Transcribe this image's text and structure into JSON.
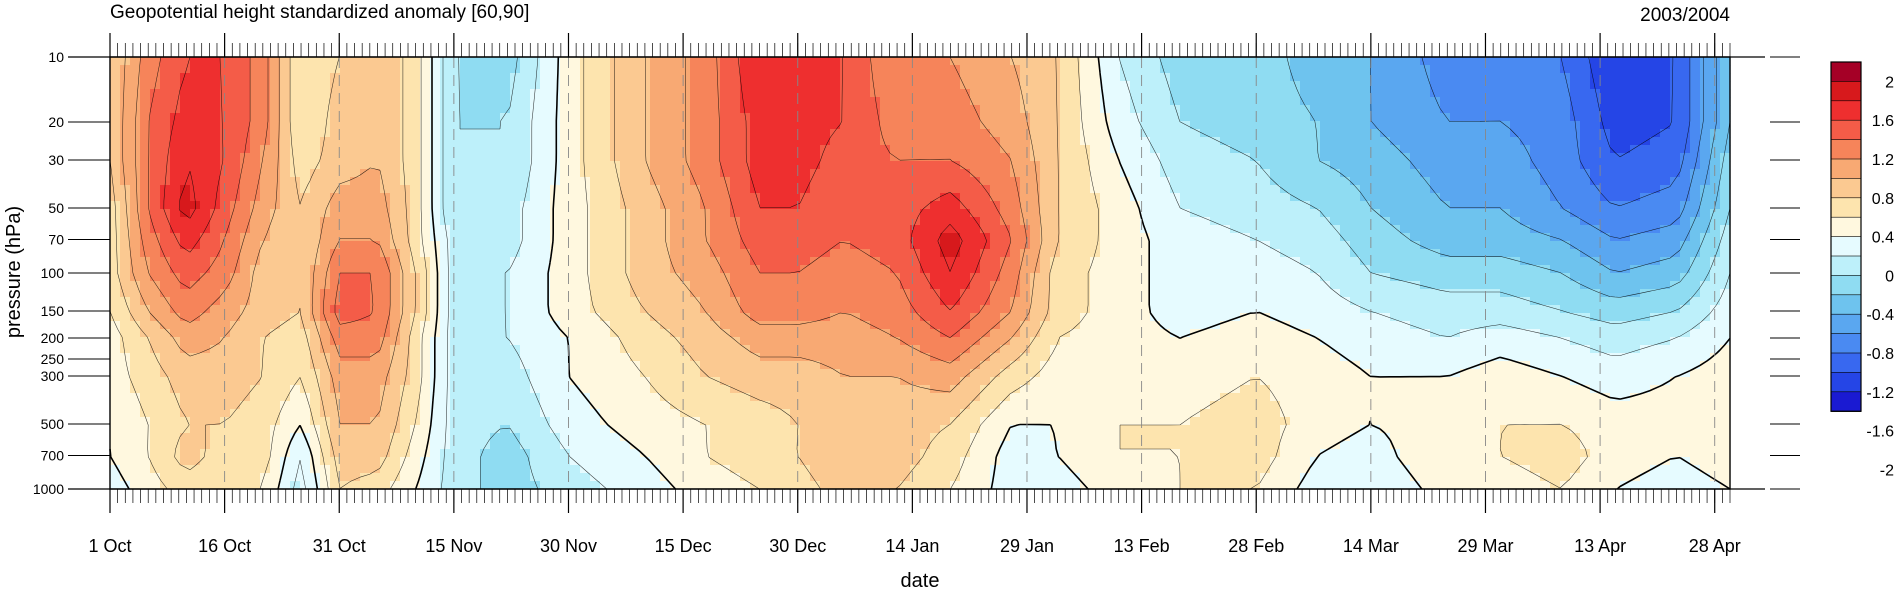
{
  "chart_data": {
    "type": "heatmap",
    "title": "Geopotential height standardized anomaly [60,90]",
    "subtitle": "2003/2004",
    "xlabel": "date",
    "ylabel": "pressure (hPa)",
    "x_tick_labels": [
      "1 Oct",
      "16 Oct",
      "31 Oct",
      "15 Nov",
      "30 Nov",
      "15 Dec",
      "30 Dec",
      "14 Jan",
      "29 Jan",
      "13 Feb",
      "28 Feb",
      "14 Mar",
      "29 Mar",
      "13 Apr",
      "28 Apr"
    ],
    "x_tick_days": [
      0,
      15,
      30,
      45,
      60,
      75,
      90,
      105,
      120,
      135,
      150,
      165,
      180,
      195,
      210
    ],
    "x_range_days": [
      0,
      212
    ],
    "y_ticks": [
      10,
      20,
      30,
      50,
      70,
      100,
      150,
      200,
      250,
      300,
      500,
      700,
      1000
    ],
    "y_range": [
      1000,
      10
    ],
    "y_scale": "log",
    "colorbar": {
      "labels": [
        "2",
        "1.6",
        "1.2",
        "0.8",
        "0.4",
        "0",
        "-0.4",
        "-0.8",
        "-1.2",
        "-1.6",
        "-2"
      ],
      "colors": [
        "#a50026",
        "#d7191c",
        "#ee2f2f",
        "#f45c48",
        "#f6845a",
        "#f8a973",
        "#fbc991",
        "#fde4ae",
        "#fff8df",
        "#e6fbff",
        "#bdf0fa",
        "#8fdcf2",
        "#6ec3ee",
        "#5aa7f0",
        "#4a8af2",
        "#3868f0",
        "#2545e6",
        "#1a1ad2"
      ]
    },
    "grid_times": [
      0,
      5,
      10,
      15,
      20,
      25,
      30,
      35,
      40,
      45,
      52,
      60,
      70,
      78,
      85,
      90,
      96,
      103,
      110,
      118,
      124,
      132,
      140,
      150,
      158,
      165,
      175,
      182,
      190,
      197,
      205,
      212
    ],
    "grid_levels": [
      10,
      20,
      30,
      50,
      70,
      100,
      150,
      200,
      300,
      500,
      700,
      1000
    ],
    "values": [
      [
        0.4,
        0.9,
        1.2,
        1.2,
        0.9,
        0.2,
        0.4,
        0.6,
        0.3,
        -0.4,
        -0.5,
        0.1,
        0.6,
        0.9,
        1.4,
        1.4,
        1.2,
        0.8,
        0.8,
        0.6,
        0.4,
        -0.2,
        -0.5,
        -0.5,
        -0.7,
        -0.8,
        -1.1,
        -1.0,
        -1.2,
        -1.6,
        -1.4,
        -0.6
      ],
      [
        0.4,
        1.0,
        1.3,
        1.2,
        0.9,
        0.2,
        0.5,
        0.6,
        0.3,
        -0.4,
        -0.4,
        0.1,
        0.6,
        0.9,
        1.3,
        1.3,
        1.2,
        0.9,
        0.9,
        0.7,
        0.4,
        -0.1,
        -0.4,
        -0.5,
        -0.6,
        -0.8,
        -1.0,
        -1.0,
        -1.1,
        -1.5,
        -1.4,
        -0.6
      ],
      [
        0.4,
        1.0,
        1.4,
        1.2,
        0.8,
        0.3,
        0.5,
        0.6,
        0.3,
        -0.4,
        -0.4,
        0.1,
        0.6,
        0.9,
        1.3,
        1.3,
        1.1,
        1.0,
        1.0,
        0.8,
        0.4,
        0.0,
        -0.3,
        -0.4,
        -0.6,
        -0.7,
        -0.9,
        -0.9,
        -1.1,
        -1.4,
        -1.3,
        -0.5
      ],
      [
        0.3,
        1.0,
        1.5,
        1.1,
        0.7,
        0.4,
        0.7,
        0.7,
        0.3,
        -0.4,
        -0.3,
        0.1,
        0.5,
        0.8,
        1.2,
        1.2,
        1.0,
        1.1,
        1.3,
        0.9,
        0.4,
        0.1,
        -0.2,
        -0.3,
        -0.4,
        -0.6,
        -0.8,
        -0.8,
        -1.0,
        -1.2,
        -1.1,
        -0.4
      ],
      [
        0.3,
        0.9,
        1.3,
        1.0,
        0.6,
        0.4,
        0.8,
        0.8,
        0.3,
        -0.3,
        -0.3,
        0.1,
        0.5,
        0.8,
        1.1,
        1.1,
        1.0,
        1.1,
        1.5,
        1.0,
        0.4,
        0.1,
        -0.1,
        -0.2,
        -0.3,
        -0.5,
        -0.7,
        -0.7,
        -0.8,
        -1.0,
        -0.9,
        -0.3
      ],
      [
        0.3,
        0.8,
        1.1,
        0.9,
        0.5,
        0.4,
        1.0,
        1.0,
        0.4,
        -0.3,
        -0.2,
        0.1,
        0.5,
        0.7,
        1.0,
        1.0,
        0.9,
        1.0,
        1.4,
        0.9,
        0.3,
        0.1,
        -0.1,
        -0.1,
        -0.2,
        -0.4,
        -0.5,
        -0.5,
        -0.6,
        -0.8,
        -0.7,
        -0.2
      ],
      [
        0.2,
        0.6,
        0.9,
        0.7,
        0.5,
        0.4,
        1.1,
        1.0,
        0.4,
        -0.3,
        -0.2,
        0.1,
        0.4,
        0.6,
        0.9,
        0.9,
        0.8,
        0.9,
        1.2,
        0.8,
        0.3,
        0.1,
        -0.1,
        0.0,
        -0.1,
        -0.2,
        -0.3,
        -0.3,
        -0.4,
        -0.5,
        -0.4,
        -0.1
      ],
      [
        0.1,
        0.4,
        0.7,
        0.6,
        0.4,
        0.3,
        0.9,
        0.9,
        0.3,
        -0.3,
        -0.2,
        0.0,
        0.3,
        0.5,
        0.7,
        0.7,
        0.7,
        0.8,
        1.0,
        0.6,
        0.2,
        0.1,
        0.0,
        0.1,
        0.0,
        -0.1,
        -0.2,
        -0.1,
        -0.2,
        -0.3,
        -0.2,
        0.0
      ],
      [
        0.1,
        0.3,
        0.5,
        0.5,
        0.4,
        0.2,
        0.7,
        0.7,
        0.3,
        -0.3,
        -0.3,
        0.0,
        0.2,
        0.4,
        0.5,
        0.5,
        0.6,
        0.6,
        0.7,
        0.3,
        0.1,
        0.2,
        0.1,
        0.2,
        0.1,
        0.0,
        0.0,
        0.1,
        0.0,
        -0.1,
        0.0,
        0.1
      ],
      [
        0.0,
        0.2,
        0.4,
        0.4,
        0.3,
        0.0,
        0.6,
        0.6,
        0.2,
        -0.3,
        -0.4,
        -0.1,
        0.1,
        0.2,
        0.3,
        0.4,
        0.5,
        0.5,
        0.4,
        0.0,
        0.0,
        0.2,
        0.2,
        0.3,
        0.1,
        0.0,
        0.1,
        0.2,
        0.2,
        0.1,
        0.1,
        0.1
      ],
      [
        0.0,
        0.2,
        0.5,
        0.3,
        0.3,
        -0.2,
        0.5,
        0.5,
        0.1,
        -0.3,
        -0.5,
        -0.2,
        0.0,
        0.2,
        0.3,
        0.4,
        0.6,
        0.5,
        0.3,
        -0.1,
        0.0,
        0.2,
        0.2,
        0.3,
        0.0,
        -0.1,
        0.2,
        0.2,
        0.3,
        0.1,
        0.0,
        0.1
      ],
      [
        -0.1,
        0.1,
        0.3,
        0.2,
        0.2,
        -0.3,
        0.4,
        0.3,
        0.0,
        -0.3,
        -0.5,
        -0.3,
        -0.1,
        0.1,
        0.2,
        0.3,
        0.5,
        0.4,
        0.2,
        -0.1,
        -0.1,
        0.1,
        0.2,
        0.2,
        -0.1,
        -0.2,
        0.1,
        0.1,
        0.2,
        0.0,
        -0.1,
        0.0
      ]
    ]
  }
}
